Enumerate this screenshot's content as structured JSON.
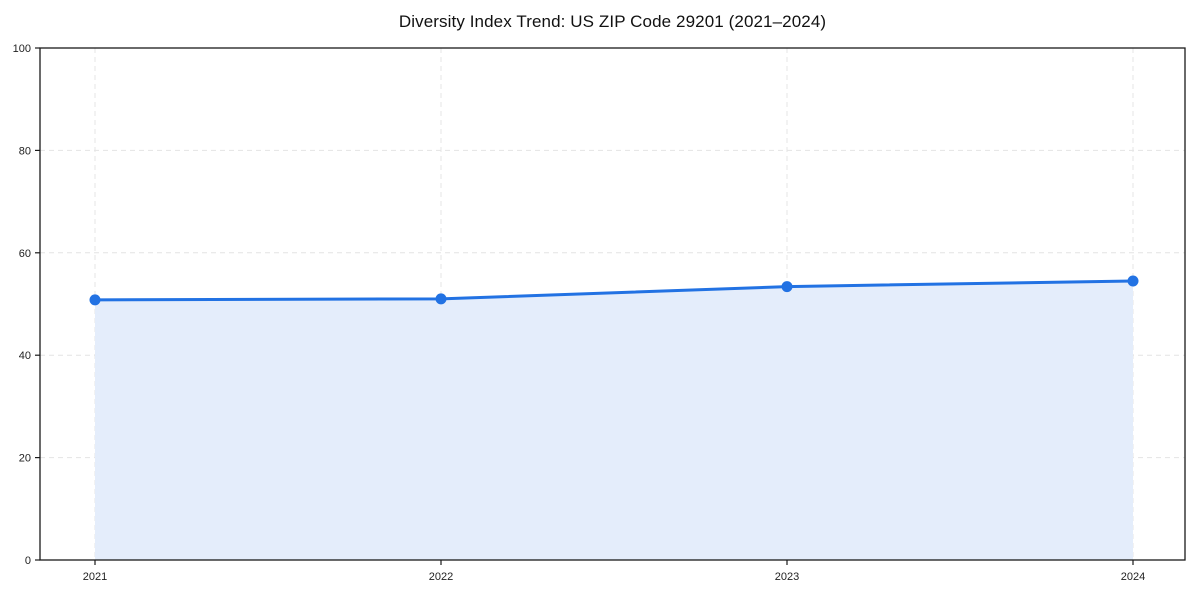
{
  "page": {
    "background_color": "#ffffff"
  },
  "chart_data": {
    "type": "area",
    "title": "Diversity Index Trend: US ZIP Code 29201 (2021–2024)",
    "x": [
      2021,
      2022,
      2023,
      2024
    ],
    "xticklabels": [
      "2021",
      "2022",
      "2023",
      "2024"
    ],
    "series": [
      {
        "name": "Diversity Index",
        "values": [
          50.8,
          51.0,
          53.4,
          54.5
        ]
      }
    ],
    "xlabel": "",
    "ylabel": "",
    "ylim": [
      0,
      100
    ],
    "yticks": [
      0,
      20,
      40,
      60,
      80,
      100
    ],
    "grid": true,
    "grid_style": "dashed",
    "grid_color": "#e4e4e4",
    "legend_position": "none",
    "line_color": "#2272e3",
    "marker_color": "#2272e3",
    "fill_color": "#e4edfb",
    "spine_color": "#1a1a1a",
    "tick_label_color": "#222222",
    "marker": "circle"
  }
}
